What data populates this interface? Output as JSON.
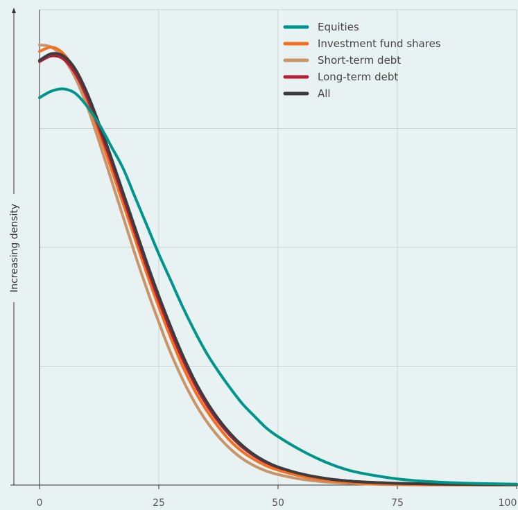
{
  "chart_data": {
    "type": "line",
    "title": "",
    "xlabel": "",
    "ylabel": "Increasing density",
    "xlim": [
      0,
      100
    ],
    "x_ticks": [
      0,
      25,
      50,
      75,
      100
    ],
    "grid": true,
    "legend_position": "top-right",
    "x": [
      0,
      2.5,
      5,
      7.5,
      10,
      12.5,
      15,
      17.5,
      20,
      22.5,
      25,
      27.5,
      30,
      32.5,
      35,
      37.5,
      40,
      42.5,
      45,
      47.5,
      50,
      55,
      60,
      65,
      70,
      75,
      80,
      85,
      90,
      95,
      100
    ],
    "series": [
      {
        "name": "Equities",
        "color": "#00958a",
        "values": [
          0.88,
          0.895,
          0.9,
          0.89,
          0.86,
          0.82,
          0.77,
          0.72,
          0.655,
          0.59,
          0.525,
          0.465,
          0.405,
          0.35,
          0.3,
          0.258,
          0.22,
          0.185,
          0.157,
          0.13,
          0.11,
          0.078,
          0.052,
          0.033,
          0.022,
          0.014,
          0.009,
          0.006,
          0.004,
          0.003,
          0.002
        ]
      },
      {
        "name": "Investment fund shares",
        "color": "#f37021",
        "values": [
          0.985,
          0.995,
          0.98,
          0.94,
          0.875,
          0.8,
          0.72,
          0.64,
          0.56,
          0.48,
          0.405,
          0.335,
          0.27,
          0.215,
          0.17,
          0.132,
          0.1,
          0.076,
          0.058,
          0.044,
          0.034,
          0.02,
          0.011,
          0.006,
          0.003,
          0.0015,
          0.0008,
          0.0004,
          0.0002,
          0.0001,
          0.0001
        ]
      },
      {
        "name": "Short-term debt",
        "color": "#c8956a",
        "values": [
          1.0,
          0.995,
          0.97,
          0.925,
          0.86,
          0.78,
          0.695,
          0.61,
          0.525,
          0.445,
          0.37,
          0.3,
          0.24,
          0.188,
          0.145,
          0.11,
          0.082,
          0.06,
          0.044,
          0.032,
          0.024,
          0.013,
          0.007,
          0.004,
          0.002,
          0.001,
          0.0005,
          0.0003,
          0.0002,
          0.0001,
          0.0001
        ]
      },
      {
        "name": "Long-term debt",
        "color": "#b51f37",
        "values": [
          0.962,
          0.975,
          0.968,
          0.935,
          0.88,
          0.81,
          0.735,
          0.655,
          0.575,
          0.495,
          0.42,
          0.35,
          0.286,
          0.23,
          0.183,
          0.144,
          0.112,
          0.086,
          0.066,
          0.051,
          0.04,
          0.025,
          0.015,
          0.009,
          0.006,
          0.004,
          0.003,
          0.002,
          0.0015,
          0.001,
          0.001
        ]
      },
      {
        "name": "All",
        "color": "#3c3c3c",
        "values": [
          0.965,
          0.98,
          0.975,
          0.945,
          0.89,
          0.82,
          0.745,
          0.665,
          0.585,
          0.505,
          0.43,
          0.36,
          0.295,
          0.238,
          0.19,
          0.15,
          0.117,
          0.09,
          0.069,
          0.053,
          0.041,
          0.025,
          0.015,
          0.009,
          0.006,
          0.004,
          0.003,
          0.002,
          0.0015,
          0.001,
          0.001
        ]
      }
    ]
  }
}
